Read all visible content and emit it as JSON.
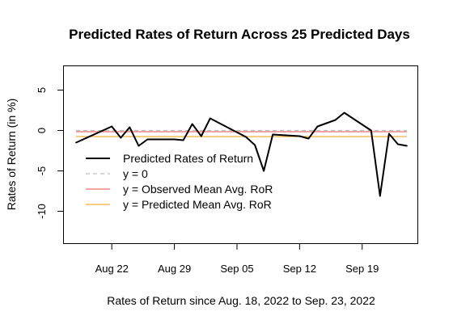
{
  "chart_data": {
    "type": "line",
    "title": "Predicted Rates of Return Across 25 Predicted Days",
    "xlabel": "Rates of Return since Aug. 18, 2022 to Sep. 23, 2022",
    "ylabel": "Rates of Return (in %)",
    "ylim": [
      -14,
      8
    ],
    "y_ticks": [
      5,
      0,
      -5,
      -10
    ],
    "y_tick_labels": [
      "5",
      "0",
      "-5",
      "-10"
    ],
    "x_ticks": [
      "2022-08-22",
      "2022-08-29",
      "2022-09-05",
      "2022-09-12",
      "2022-09-19"
    ],
    "x_tick_labels": [
      "Aug 22",
      "Aug 29",
      "Sep 05",
      "Sep 12",
      "Sep 19"
    ],
    "grid": false,
    "legend_position": "left",
    "series": [
      {
        "name": "Predicted Rates of Return",
        "color": "#000000",
        "points": [
          {
            "x": "2022-08-18",
            "y": -1.5
          },
          {
            "x": "2022-08-22",
            "y": 0.5
          },
          {
            "x": "2022-08-23",
            "y": -0.9
          },
          {
            "x": "2022-08-24",
            "y": 0.4
          },
          {
            "x": "2022-08-25",
            "y": -1.9
          },
          {
            "x": "2022-08-26",
            "y": -1.1
          },
          {
            "x": "2022-08-29",
            "y": -1.1
          },
          {
            "x": "2022-08-30",
            "y": -1.2
          },
          {
            "x": "2022-08-31",
            "y": 0.8
          },
          {
            "x": "2022-09-01",
            "y": -0.7
          },
          {
            "x": "2022-09-02",
            "y": 1.5
          },
          {
            "x": "2022-09-06",
            "y": -0.8
          },
          {
            "x": "2022-09-07",
            "y": -1.8
          },
          {
            "x": "2022-09-08",
            "y": -5.0
          },
          {
            "x": "2022-09-09",
            "y": -0.5
          },
          {
            "x": "2022-09-12",
            "y": -0.7
          },
          {
            "x": "2022-09-13",
            "y": -1.0
          },
          {
            "x": "2022-09-14",
            "y": 0.5
          },
          {
            "x": "2022-09-15",
            "y": 0.9
          },
          {
            "x": "2022-09-16",
            "y": 1.3
          },
          {
            "x": "2022-09-17",
            "y": 2.2
          },
          {
            "x": "2022-09-20",
            "y": 0.0
          },
          {
            "x": "2022-09-21",
            "y": -8.1
          },
          {
            "x": "2022-09-22",
            "y": -0.4
          },
          {
            "x": "2022-09-23",
            "y": -1.7
          },
          {
            "x": "2022-09-24",
            "y": -1.9
          }
        ]
      }
    ],
    "reference_lines": [
      {
        "name": "y = 0",
        "y": 0,
        "color": "#bdbdbd",
        "dash": true
      },
      {
        "name": "y = Observed Mean Avg. RoR",
        "y": -0.15,
        "color": "#ef6e6e",
        "dash": false
      },
      {
        "name": "y = Predicted Mean Avg. RoR",
        "y": -0.75,
        "color": "#f2b13e",
        "dash": false
      }
    ]
  }
}
